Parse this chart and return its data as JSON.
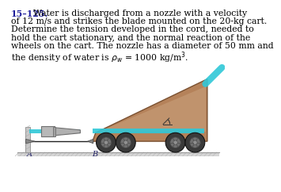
{
  "number": "15–125.",
  "line1": "   Water is discharged from a nozzle with a velocity",
  "line2": "of 12 m/s and strikes the blade mounted on the 20-kg cart.",
  "line3": "Determine the tension developed in the cord, needed to",
  "line4": "hold the cart stationary, and the normal reaction of the",
  "line5": "wheels on the cart. The nozzle has a diameter of 50 mm and",
  "line6": "the density of water is $\\rho_w$ = 1000 kg/m$^3$.",
  "angle_label": "45°",
  "label_A": "A",
  "label_B": "B",
  "bg_color": "#ffffff",
  "cart_fill": "#b5825a",
  "cart_edge": "#7a5030",
  "cart_inner": "#c9a07a",
  "wheel_dark": "#3a3a3a",
  "wheel_mid": "#707070",
  "wheel_hub": "#909090",
  "nozzle_body": "#b0b0b0",
  "nozzle_edge": "#707070",
  "water_color": "#30c8d8",
  "water_alpha": 0.9,
  "wall_fill": "#c8c8c8",
  "ground_line": "#999999",
  "ground_fill": "#d5d5d5",
  "cord_color": "#222222",
  "text_black": "#000000",
  "num_color": "#1a1a99"
}
